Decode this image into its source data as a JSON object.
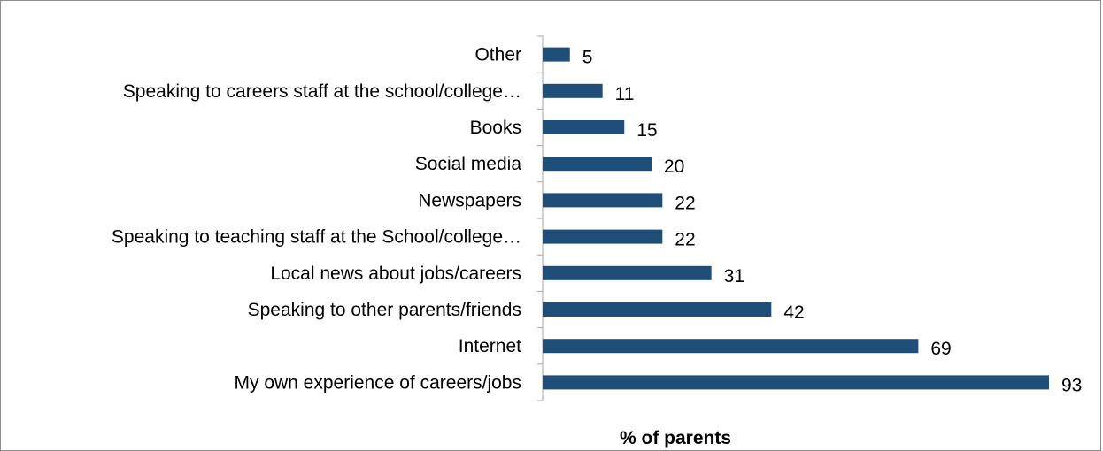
{
  "chart_data": {
    "type": "bar",
    "orientation": "horizontal",
    "categories": [
      "Other",
      "Speaking to careers staff at the school/college…",
      "Books",
      "Social media",
      "Newspapers",
      "Speaking to teaching staff at the School/college…",
      "Local news about jobs/careers",
      "Speaking to other parents/friends",
      "Internet",
      "My own experience of careers/jobs"
    ],
    "values": [
      5,
      11,
      15,
      20,
      22,
      22,
      31,
      42,
      69,
      93
    ],
    "title": "",
    "xlabel": "% of parents",
    "ylabel": "",
    "xlim": [
      0,
      100
    ],
    "grid": false,
    "legend": "none",
    "data_labels": true,
    "bar_color": "#1f4e79"
  }
}
